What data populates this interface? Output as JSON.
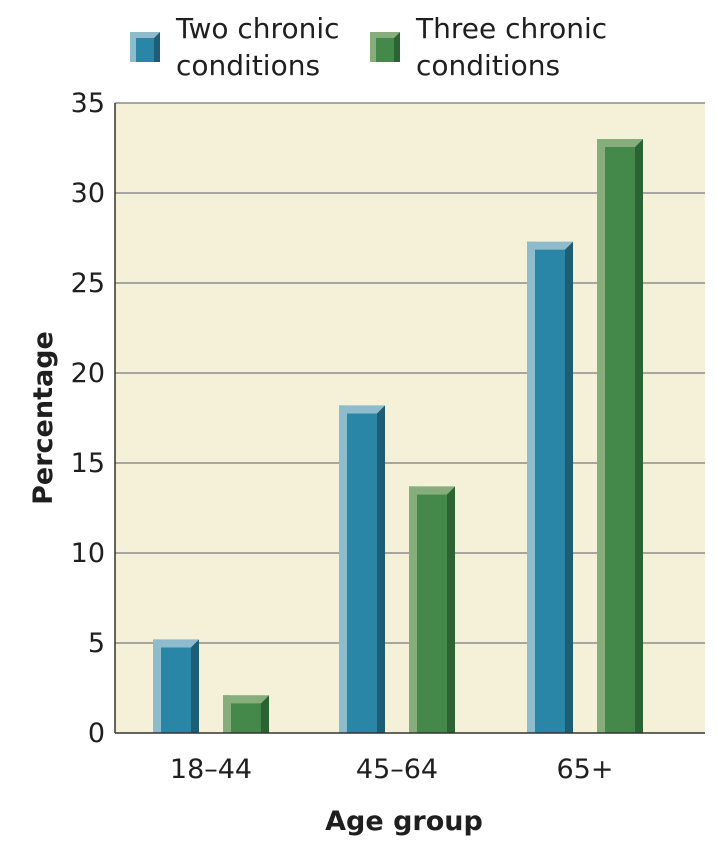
{
  "chart_data": {
    "type": "bar",
    "title": "",
    "xlabel": "Age group",
    "ylabel": "Percentage",
    "categories": [
      "18–44",
      "45–64",
      "65+"
    ],
    "series": [
      {
        "name": "Two chronic conditions",
        "legend_lines": [
          "Two chronic",
          "conditions"
        ],
        "values": [
          5.2,
          18.2,
          27.3
        ]
      },
      {
        "name": "Three chronic conditions",
        "legend_lines": [
          "Three chronic",
          "conditions"
        ],
        "values": [
          2.1,
          13.7,
          33.0
        ]
      }
    ],
    "ylim": [
      0,
      35
    ],
    "yticks": [
      0,
      5,
      10,
      15,
      20,
      25,
      30,
      35
    ],
    "grid": true,
    "legend_position": "top",
    "colors": {
      "plot_background": "#f4f1d8",
      "grid": "#8c8c8c",
      "series": [
        {
          "front": "#2a86a6",
          "top": "#8fbccc",
          "side": "#1b5e76"
        },
        {
          "front": "#44884a",
          "top": "#87ad7c",
          "side": "#2c6332"
        }
      ]
    }
  }
}
